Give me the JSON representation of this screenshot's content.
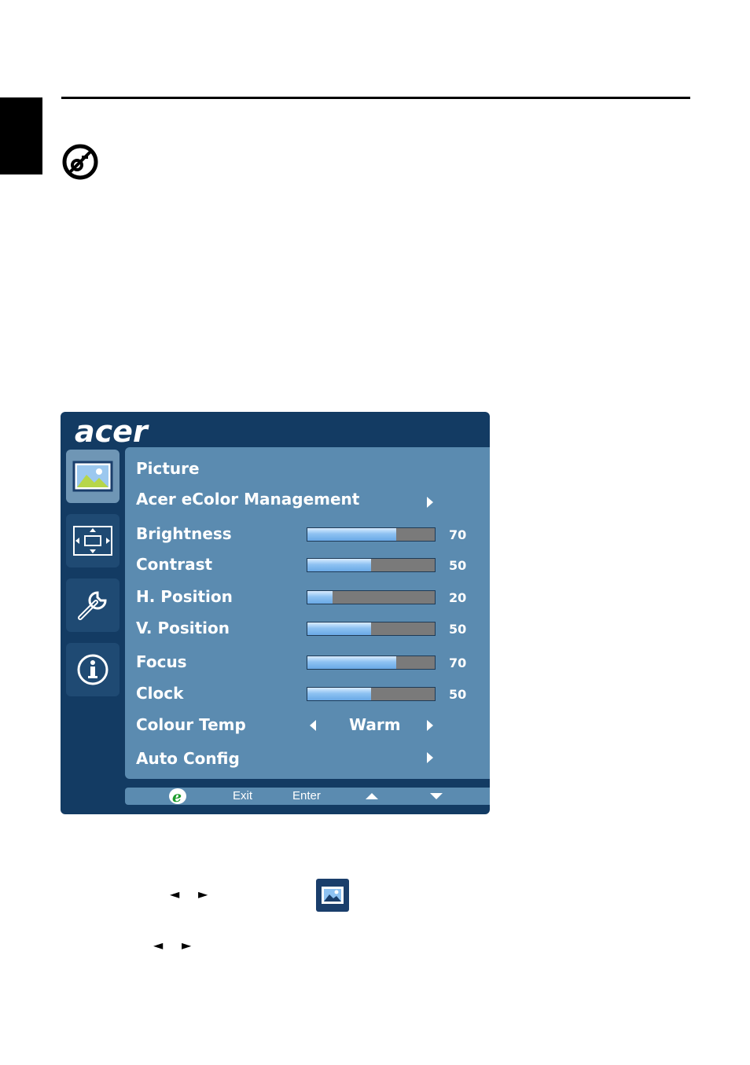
{
  "page": {
    "side_tab": "",
    "colors": {
      "osd_bg": "#133b63",
      "panel": "#5b8bb0",
      "active_icon": "#6f96b5",
      "bar_fill": "#8ec2f2",
      "bar_track": "#7a7a7a"
    }
  },
  "osd": {
    "logo": "acer",
    "nav": [
      {
        "icon": "picture-icon",
        "active": true
      },
      {
        "icon": "position-icon",
        "active": false
      },
      {
        "icon": "wrench-icon",
        "active": false
      },
      {
        "icon": "info-icon",
        "active": false
      }
    ],
    "title": "Picture",
    "ecolor_label": "Acer eColor Management",
    "rows": [
      {
        "label": "Brightness",
        "value": "70",
        "level": 70
      },
      {
        "label": "Contrast",
        "value": "50",
        "level": 50
      },
      {
        "label": "H. Position",
        "value": "20",
        "level": 20
      },
      {
        "label": "V. Position",
        "value": "50",
        "level": 50
      },
      {
        "label": "Focus",
        "value": "70",
        "level": 70
      },
      {
        "label": "Clock",
        "value": "50",
        "level": 50
      }
    ],
    "colour_temp": {
      "label": "Colour Temp",
      "value": "Warm"
    },
    "auto_config": {
      "label": "Auto Config"
    },
    "footer": {
      "e_icon": "e",
      "exit": "Exit",
      "enter": "Enter",
      "up_icon": "up-arrow-icon",
      "down_icon": "down-arrow-icon"
    }
  },
  "instructions": {
    "line1_left": "◄",
    "line1_right": "►",
    "line2_left": "◄",
    "line2_right": "►"
  }
}
